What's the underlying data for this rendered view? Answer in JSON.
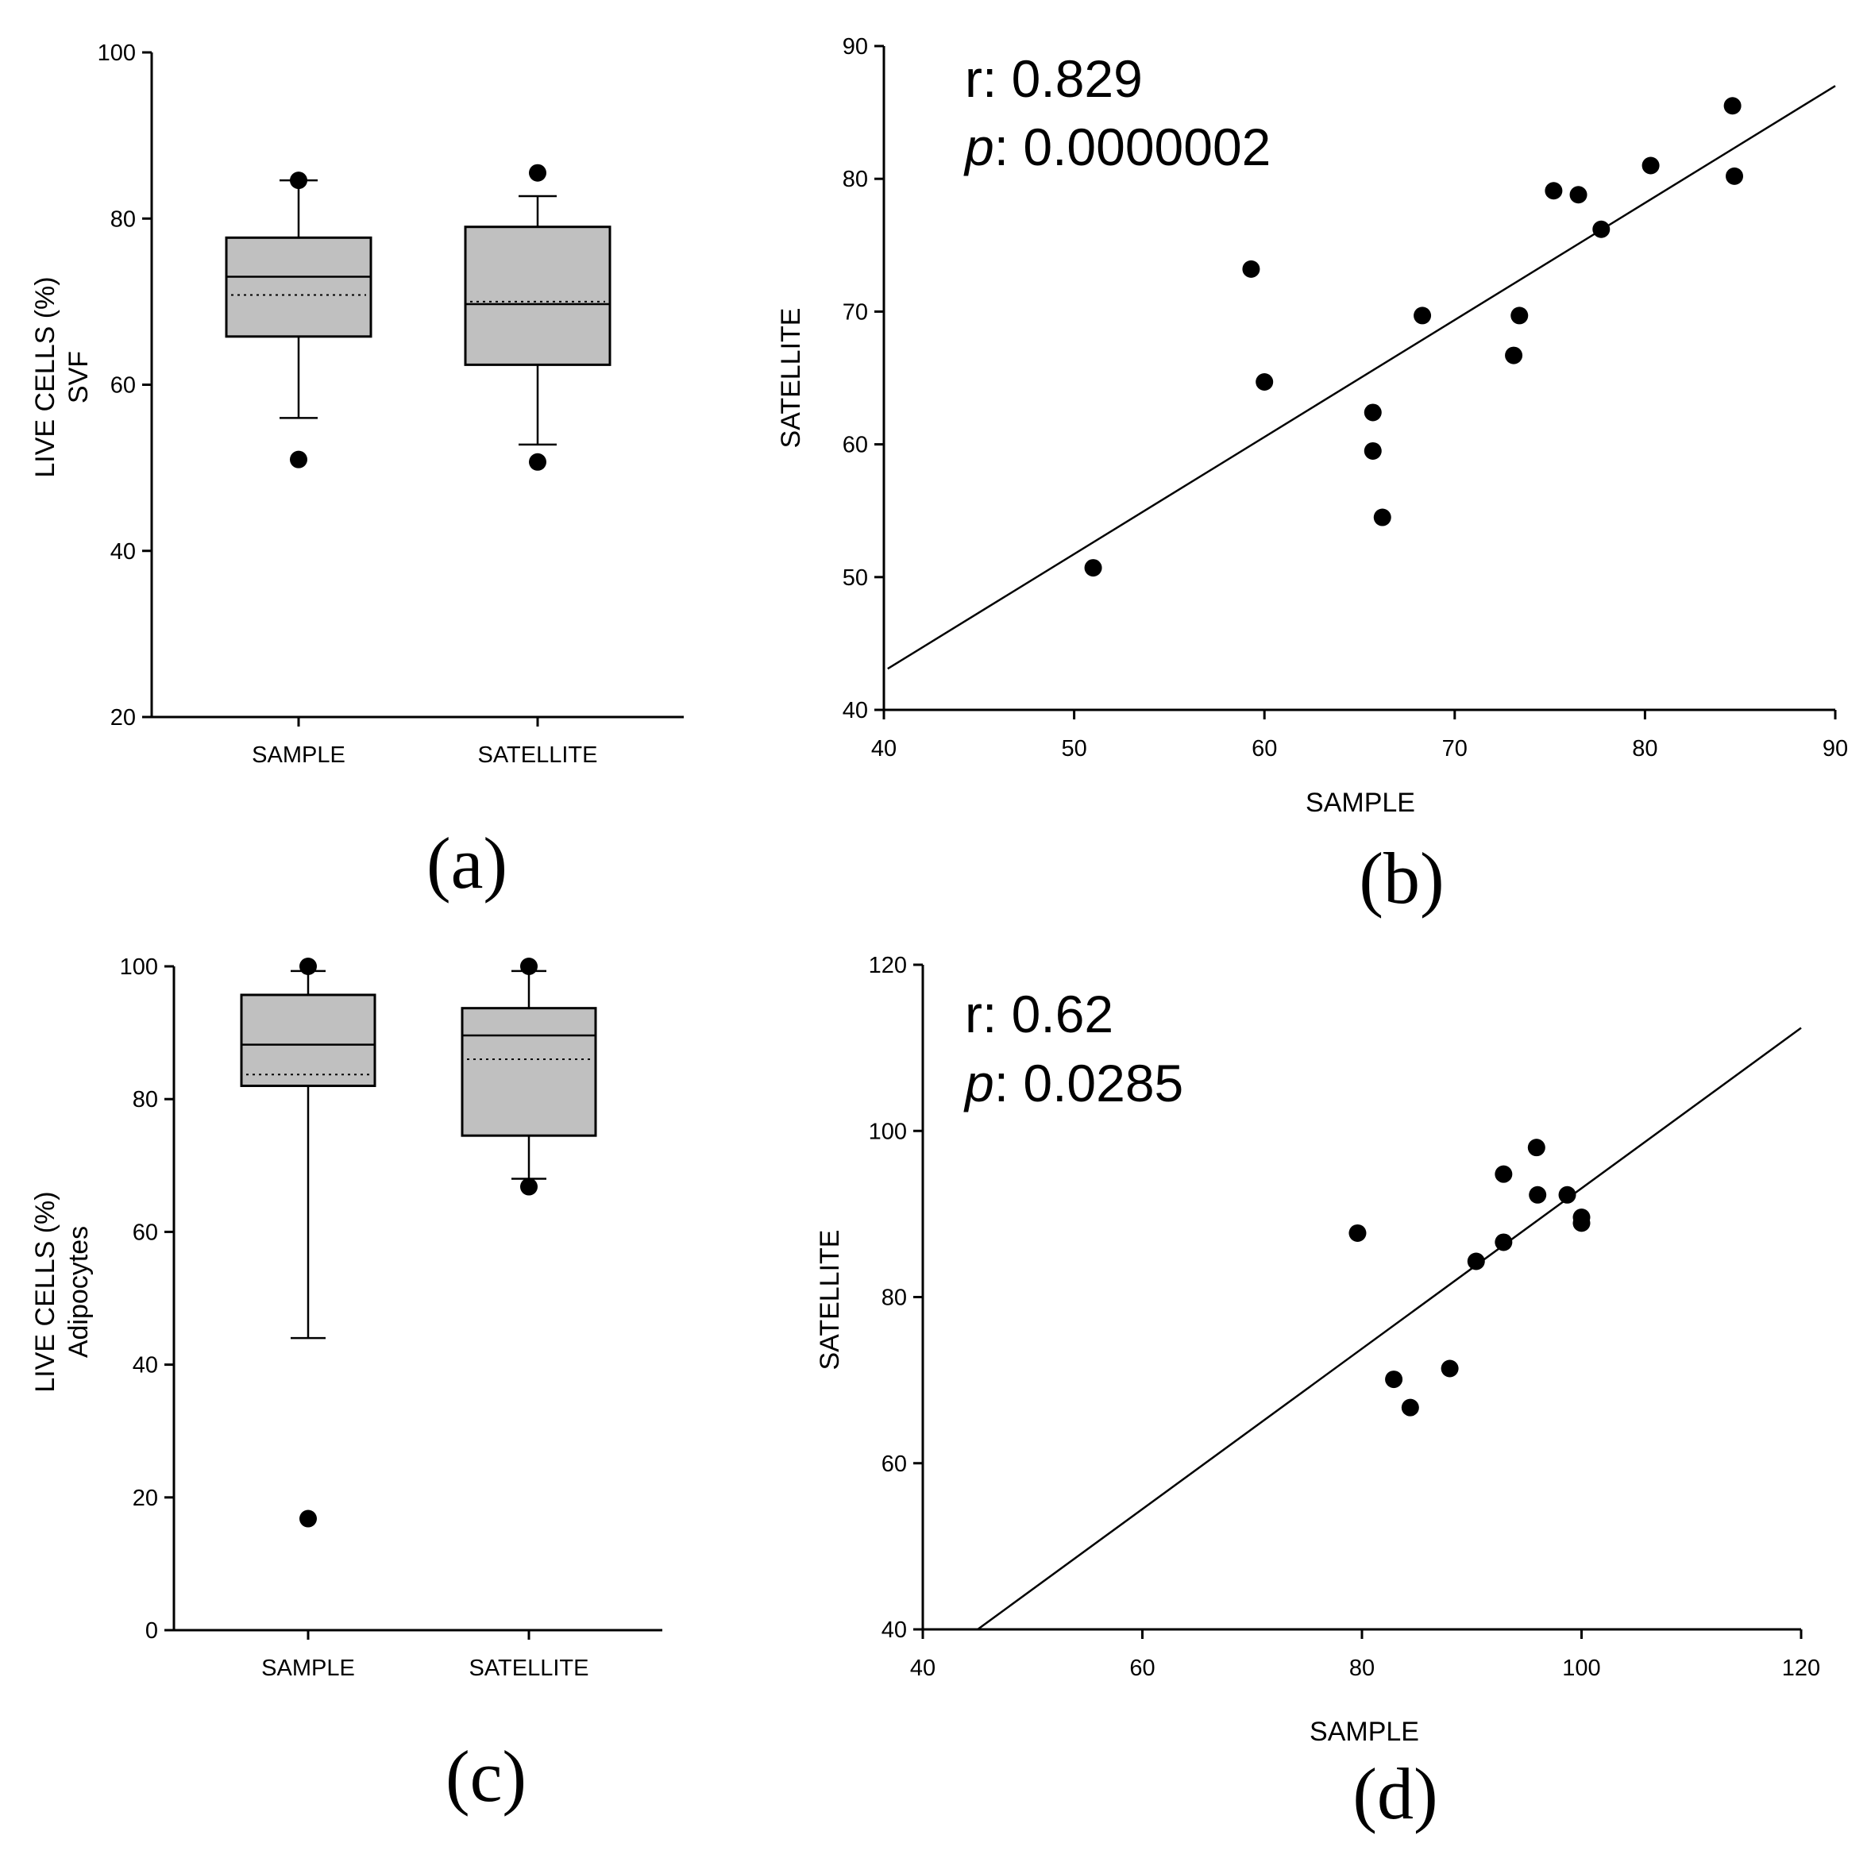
{
  "chart_data": [
    {
      "type": "box",
      "panel": "(a)",
      "ylabel_line1": "LIVE CELLS (%)",
      "ylabel_line2": "SVF",
      "xlabel": "",
      "ylim": [
        20,
        100
      ],
      "yticks": [
        20,
        40,
        60,
        80,
        100
      ],
      "categories": [
        "SAMPLE",
        "SATELLITE"
      ],
      "boxes": [
        {
          "name": "SAMPLE",
          "whisker_low": 56,
          "q1": 65.8,
          "median": 73,
          "mean": 70.8,
          "q3": 77.7,
          "whisker_high": 84.6,
          "outliers": [
            51,
            84.6
          ]
        },
        {
          "name": "SATELLITE",
          "whisker_low": 52.8,
          "q1": 62.4,
          "median": 69.7,
          "mean": 70,
          "q3": 79,
          "whisker_high": 82.7,
          "outliers": [
            50.7,
            85.5
          ]
        }
      ]
    },
    {
      "type": "scatter",
      "panel": "(b)",
      "xlabel": "SAMPLE",
      "ylabel": "SATELLITE",
      "xlim": [
        40,
        90
      ],
      "ylim": [
        40,
        90
      ],
      "xticks": [
        40,
        50,
        60,
        70,
        80,
        90
      ],
      "yticks": [
        40,
        50,
        60,
        70,
        80,
        90
      ],
      "r_text": "r: 0.829",
      "p_symbol": "p",
      "p_value_text": ": 0.0000002",
      "fit_line": {
        "x0": 40.2,
        "y0": 43.1,
        "x1": 90,
        "y1": 87
      },
      "points": [
        [
          51,
          50.7
        ],
        [
          59.3,
          73.2
        ],
        [
          60,
          64.7
        ],
        [
          65.7,
          62.4
        ],
        [
          65.7,
          59.5
        ],
        [
          66.2,
          54.5
        ],
        [
          68.3,
          69.7
        ],
        [
          73.1,
          66.7
        ],
        [
          73.4,
          69.7
        ],
        [
          75.2,
          79.1
        ],
        [
          76.5,
          78.8
        ],
        [
          77.7,
          76.2
        ],
        [
          80.3,
          81
        ],
        [
          84.6,
          85.5
        ],
        [
          84.7,
          80.2
        ]
      ]
    },
    {
      "type": "box",
      "panel": "(c)",
      "ylabel_line1": "LIVE CELLS (%)",
      "ylabel_line2": "Adipocytes",
      "xlabel": "",
      "ylim": [
        0,
        100
      ],
      "yticks": [
        0,
        20,
        40,
        60,
        80,
        100
      ],
      "categories": [
        "SAMPLE",
        "SATELLITE"
      ],
      "boxes": [
        {
          "name": "SAMPLE",
          "whisker_low": 44,
          "q1": 82,
          "median": 88.2,
          "mean": 83.7,
          "q3": 95.7,
          "whisker_high": 99.3,
          "outliers": [
            16.8,
            100
          ]
        },
        {
          "name": "SATELLITE",
          "whisker_low": 68,
          "q1": 74.5,
          "median": 89.6,
          "mean": 86,
          "q3": 93.7,
          "whisker_high": 99.3,
          "outliers": [
            66.8,
            100
          ]
        }
      ]
    },
    {
      "type": "scatter",
      "panel": "(d)",
      "xlabel": "SAMPLE",
      "ylabel": "SATELLITE",
      "xlim": [
        40,
        120
      ],
      "ylim": [
        40,
        120
      ],
      "xticks": [
        40,
        60,
        80,
        100,
        120
      ],
      "yticks": [
        40,
        60,
        80,
        100,
        120
      ],
      "r_text": "r: 0.62",
      "p_symbol": "p",
      "p_value_text": ": 0.0285",
      "fit_line": {
        "x0": 45,
        "y0": 40,
        "x1": 120,
        "y1": 112.4
      },
      "points": [
        [
          79.6,
          87.7
        ],
        [
          82.9,
          70.1
        ],
        [
          84.4,
          66.7
        ],
        [
          88,
          71.4
        ],
        [
          90.4,
          84.3
        ],
        [
          92.9,
          86.6
        ],
        [
          92.9,
          94.8
        ],
        [
          95.9,
          98
        ],
        [
          96,
          92.3
        ],
        [
          98.7,
          92.3
        ],
        [
          100,
          89.6
        ],
        [
          100,
          88.9
        ]
      ]
    }
  ]
}
